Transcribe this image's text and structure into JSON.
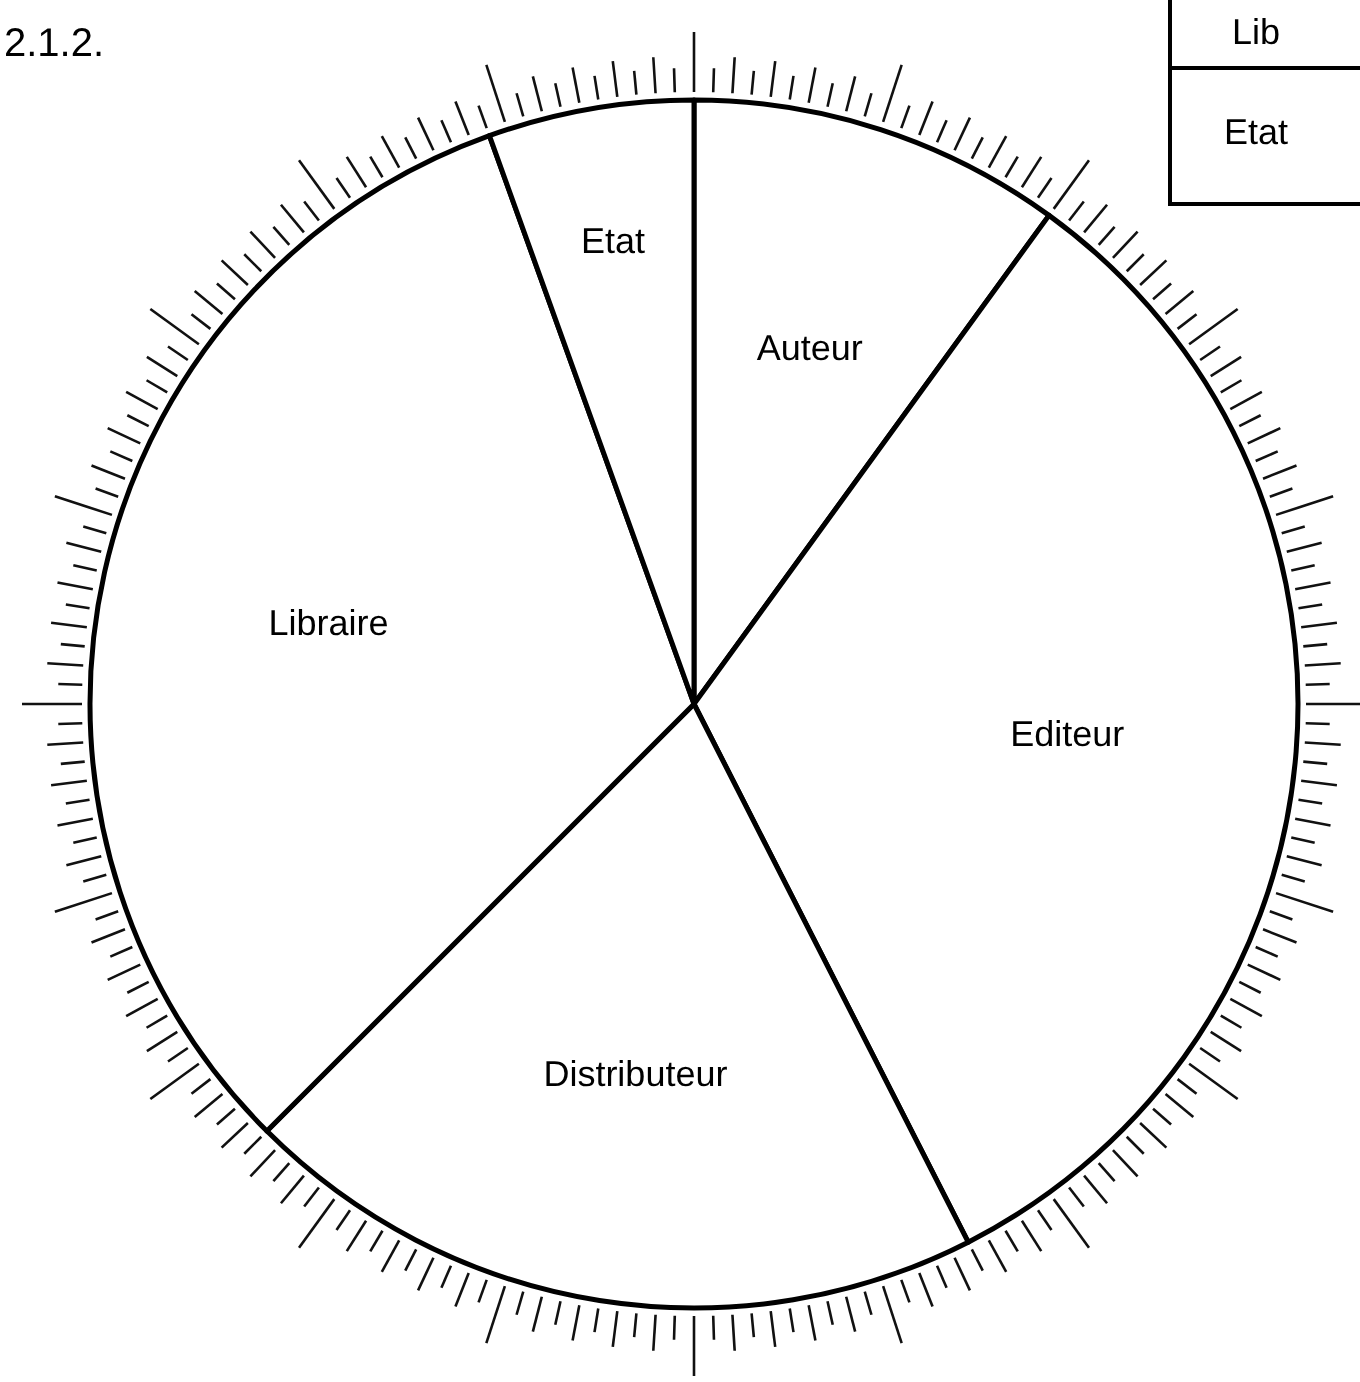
{
  "chart_data": {
    "type": "pie",
    "title": "2.1.2.",
    "categories": [
      "Auteur",
      "Editeur",
      "Distributeur",
      "Libraire",
      "Etat"
    ],
    "values": [
      10,
      32.5,
      20,
      32,
      5.5
    ],
    "colors": [
      "#ffffff",
      "#ffffff",
      "#ffffff",
      "#ffffff",
      "#ffffff"
    ],
    "annotations": [
      "Lib",
      "Etat"
    ]
  }
}
